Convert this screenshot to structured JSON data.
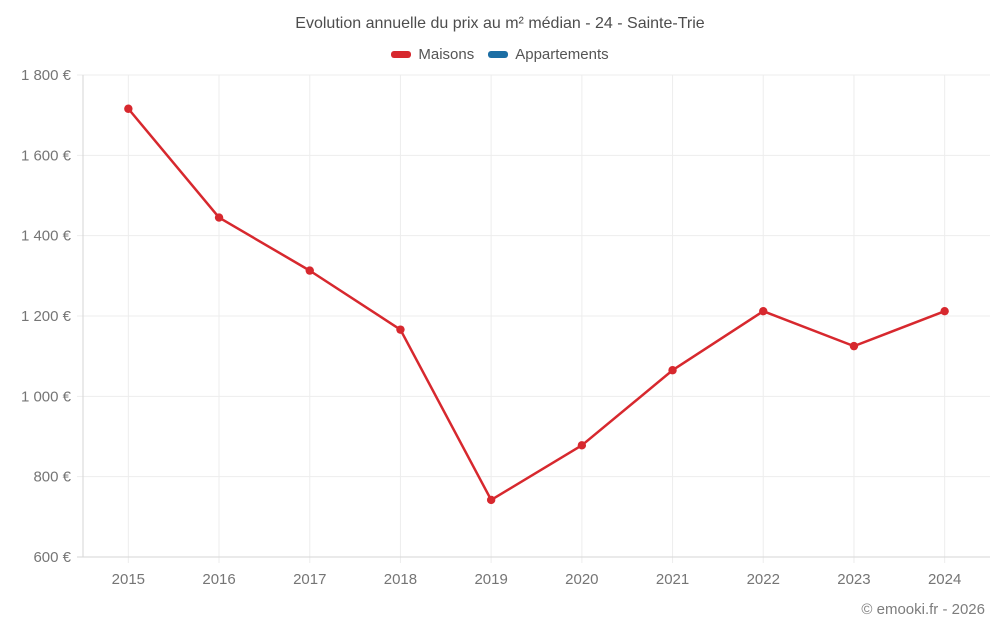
{
  "title": "Evolution annuelle du prix au m² médian - 24 - Sainte-Trie",
  "footer": "© emooki.fr - 2026",
  "colors": {
    "maisons": "#d7282e",
    "appartements": "#1c6ea4",
    "grid": "#ededed",
    "axis": "#d6d6d6",
    "tick_text": "#757575"
  },
  "chart_data": {
    "type": "line",
    "x": [
      "2015",
      "2016",
      "2017",
      "2018",
      "2019",
      "2020",
      "2021",
      "2022",
      "2023",
      "2024"
    ],
    "series": [
      {
        "name": "Maisons",
        "color": "#d7282e",
        "values": [
          1716,
          1445,
          1313,
          1166,
          742,
          878,
          1065,
          1212,
          1125,
          1212
        ]
      },
      {
        "name": "Appartements",
        "color": "#1c6ea4",
        "values": []
      }
    ],
    "ylim": [
      600,
      1800
    ],
    "ytick_step": 200,
    "ytick_labels": [
      "600 €",
      "800 €",
      "1 000 €",
      "1 200 €",
      "1 400 €",
      "1 600 €",
      "1 800 €"
    ],
    "grid": true,
    "legend_position": "top",
    "title": "Evolution annuelle du prix au m² médian - 24 - Sainte-Trie"
  }
}
